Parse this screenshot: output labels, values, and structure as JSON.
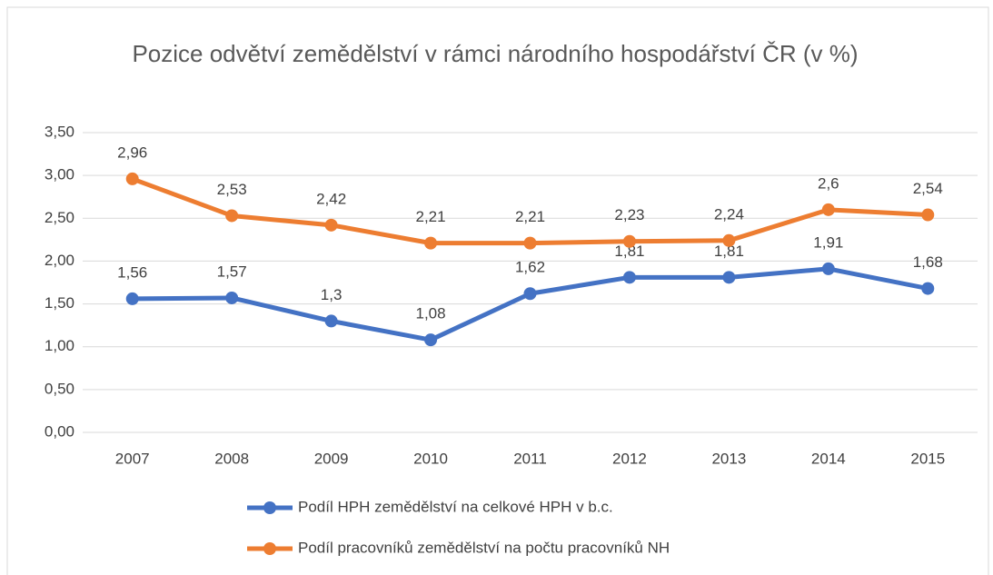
{
  "chart_data": {
    "type": "line",
    "title": "Pozice odvětví zemědělství v rámci národního hospodářství ČR (v %)",
    "categories": [
      "2007",
      "2008",
      "2009",
      "2010",
      "2011",
      "2012",
      "2013",
      "2014",
      "2015"
    ],
    "series": [
      {
        "name": "Podíl HPH zemědělství na celkové HPH v b.c.",
        "color": "#4472c4",
        "values": [
          1.56,
          1.57,
          1.3,
          1.08,
          1.62,
          1.81,
          1.81,
          1.91,
          1.68
        ],
        "value_labels": [
          "1,56",
          "1,57",
          "1,3",
          "1,08",
          "1,62",
          "1,81",
          "1,81",
          "1,91",
          "1,68"
        ]
      },
      {
        "name": "Podíl pracovníků zemědělství na počtu pracovníků NH",
        "color": "#ed7d31",
        "values": [
          2.96,
          2.53,
          2.42,
          2.21,
          2.21,
          2.23,
          2.24,
          2.6,
          2.54
        ],
        "value_labels": [
          "2,96",
          "2,53",
          "2,42",
          "2,21",
          "2,21",
          "2,23",
          "2,24",
          "2,6",
          "2,54"
        ]
      }
    ],
    "ylim": [
      0,
      3.5
    ],
    "yticks": [
      {
        "value": 0,
        "label": "0,00"
      },
      {
        "value": 0.5,
        "label": "0,50"
      },
      {
        "value": 1,
        "label": "1,00"
      },
      {
        "value": 1.5,
        "label": "1,50"
      },
      {
        "value": 2,
        "label": "2,00"
      },
      {
        "value": 2.5,
        "label": "2,50"
      },
      {
        "value": 3,
        "label": "3,00"
      },
      {
        "value": 3.5,
        "label": "3,50"
      }
    ],
    "grid": true,
    "legend": "bottom"
  }
}
